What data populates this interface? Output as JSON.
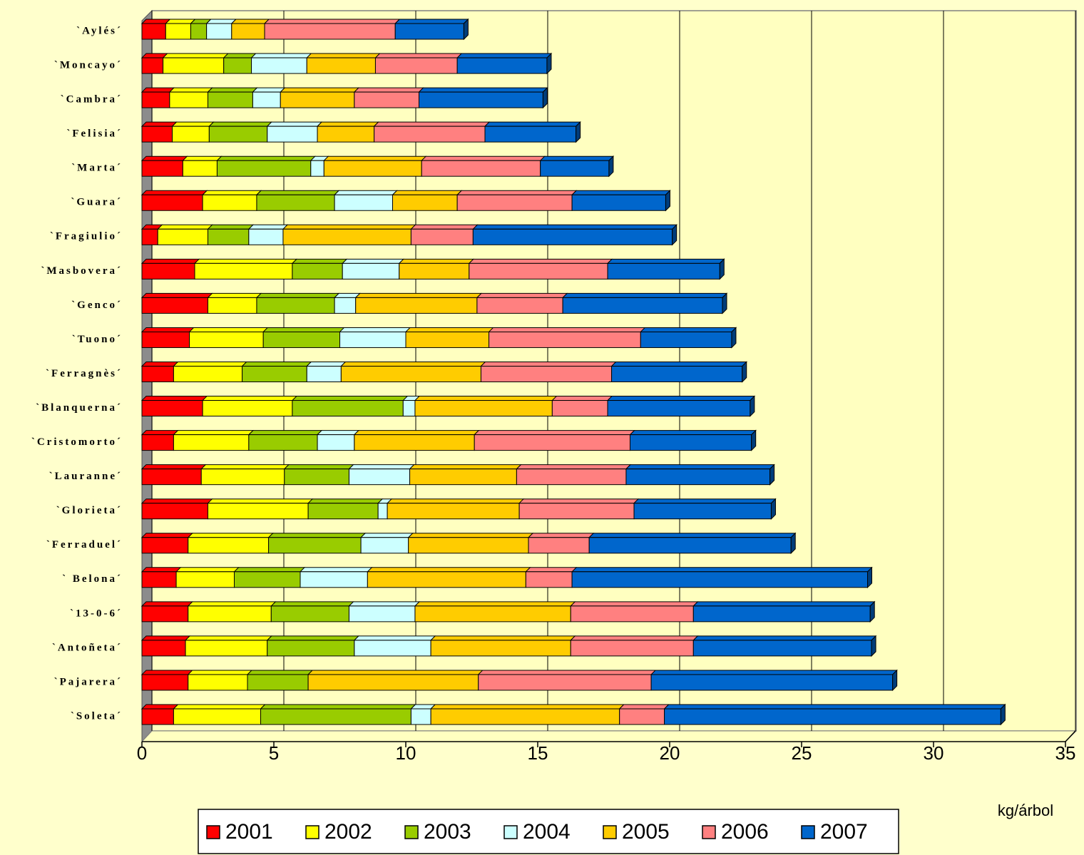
{
  "chart_data": {
    "type": "stacked-barh",
    "xlabel": "kg/árbol",
    "categories": [
      "`Aylés´",
      "`Moncayo´",
      "`Cambra´",
      "`Felisia´",
      "`Marta´",
      "`Guara´",
      "`Fragiulio´",
      "`Masbovera´",
      "`Genco´",
      "`Tuono´",
      "`Ferragnès´",
      "`Blanquerna´",
      "`Cristomorto´",
      "`Lauranne´",
      "`Glorieta´",
      "`Ferraduel´",
      "` Belona´",
      "`13-0-6´",
      "`Antoñeta´",
      "`Pajarera´",
      "`Soleta´"
    ],
    "series": [
      {
        "name": "2001",
        "color": "#ff0000",
        "values": [
          0.9,
          0.8,
          1.05,
          1.15,
          1.55,
          2.3,
          0.6,
          2.0,
          2.5,
          1.8,
          1.2,
          2.3,
          1.2,
          2.25,
          2.5,
          1.75,
          1.3,
          1.75,
          1.65,
          1.75,
          1.2
        ]
      },
      {
        "name": "2002",
        "color": "#ffff00",
        "values": [
          0.95,
          2.3,
          1.45,
          1.4,
          1.3,
          2.05,
          1.9,
          3.7,
          1.85,
          2.8,
          2.6,
          3.4,
          2.85,
          3.15,
          3.8,
          3.05,
          2.2,
          3.15,
          3.1,
          2.25,
          3.3
        ]
      },
      {
        "name": "2003",
        "color": "#99cc00",
        "values": [
          0.6,
          1.05,
          1.7,
          2.2,
          3.55,
          2.95,
          1.55,
          1.9,
          2.95,
          2.9,
          2.45,
          4.2,
          2.6,
          2.45,
          2.65,
          3.5,
          2.5,
          2.95,
          3.3,
          2.3,
          5.7
        ]
      },
      {
        "name": "2004",
        "color": "#ccffff",
        "values": [
          0.95,
          2.1,
          1.05,
          1.9,
          0.5,
          2.2,
          1.3,
          2.15,
          0.8,
          2.5,
          1.3,
          0.45,
          1.4,
          2.3,
          0.35,
          1.8,
          2.55,
          2.5,
          2.9,
          0,
          0.75
        ]
      },
      {
        "name": "2005",
        "color": "#ffcc00",
        "values": [
          1.25,
          2.6,
          2.8,
          2.15,
          3.7,
          2.45,
          4.85,
          2.65,
          4.6,
          3.15,
          5.3,
          5.2,
          4.55,
          4.05,
          5.0,
          4.55,
          6.0,
          5.9,
          5.3,
          6.45,
          7.15
        ]
      },
      {
        "name": "2006",
        "color": "#ff8080",
        "values": [
          4.95,
          3.1,
          2.45,
          4.2,
          4.5,
          4.35,
          2.35,
          5.25,
          3.25,
          5.75,
          4.95,
          2.1,
          5.9,
          4.15,
          4.35,
          2.3,
          1.75,
          4.65,
          4.65,
          6.55,
          1.7
        ]
      },
      {
        "name": "2007",
        "color": "#0066cc",
        "values": [
          2.6,
          3.4,
          4.7,
          3.45,
          2.6,
          3.55,
          7.55,
          4.25,
          6.05,
          3.45,
          4.95,
          5.4,
          4.6,
          5.45,
          5.2,
          7.65,
          11.2,
          6.7,
          6.75,
          9.15,
          12.75
        ]
      }
    ],
    "xlim": [
      0,
      35
    ],
    "xticks": [
      0,
      5,
      10,
      15,
      20,
      25,
      30,
      35
    ],
    "grid": true,
    "legend": "bottom"
  }
}
